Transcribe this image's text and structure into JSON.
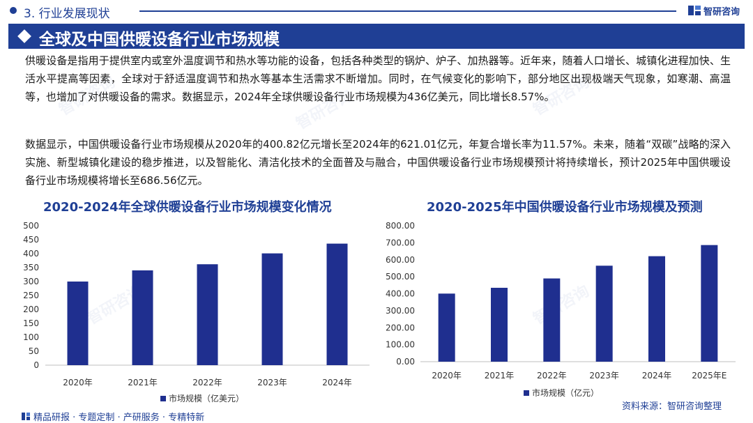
{
  "header": {
    "section": "3. 行业发展现状",
    "logo_text": "智研咨询"
  },
  "banner": {
    "title": "全球及中国供暖设备行业市场规模"
  },
  "paragraphs": [
    "供暖设备是指用于提供室内或室外温度调节和热水等功能的设备，包括各种类型的锅炉、炉子、加热器等。近年来，随着人口增长、城镇化进程加快、生活水平提高等因素，全球对于舒适温度调节和热水等基本生活需求不断增加。同时，在气候变化的影响下，部分地区出现极端天气现象，如寒潮、高温等，也增加了对供暖设备的需求。数据显示，2024年全球供暖设备行业市场规模为436亿美元，同比增长8.57%。",
    "数据显示，中国供暖设备行业市场规模从2020年的400.82亿元增长至2024年的621.01亿元，年复合增长率为11.57%。未来，随着“双碳”战略的深入实施、新型城镇化建设的稳步推进，以及智能化、清洁化技术的全面普及与融合，中国供暖设备行业市场规模预计将持续增长，预计2025年中国供暖设备行业市场规模将增长至686.56亿元。"
  ],
  "chart_data": [
    {
      "type": "bar",
      "title": "2020-2024年全球供暖设备行业市场规模变化情况",
      "categories": [
        "2020年",
        "2021年",
        "2022年",
        "2023年",
        "2024年"
      ],
      "series": [
        {
          "name": "市场规模（亿美元）",
          "values": [
            300,
            340,
            362,
            401,
            436
          ]
        }
      ],
      "ylim": [
        0,
        500
      ],
      "yticks": [
        "0",
        "50",
        "100",
        "150",
        "200",
        "250",
        "300",
        "350",
        "400",
        "450",
        "500"
      ],
      "legend": "bottom",
      "grid": false,
      "color": "#1f2f8f"
    },
    {
      "type": "bar",
      "title": "2020-2025年中国供暖设备行业市场规模及预测",
      "categories": [
        "2020年",
        "2021年",
        "2022年",
        "2023年",
        "2024年",
        "2025年E"
      ],
      "series": [
        {
          "name": "市场规模（亿元）",
          "values": [
            400.82,
            435,
            490,
            565,
            621.01,
            686.56
          ]
        }
      ],
      "ylim": [
        0,
        800
      ],
      "yticks": [
        "0.00",
        "100.00",
        "200.00",
        "300.00",
        "400.00",
        "500.00",
        "600.00",
        "700.00",
        "800.00"
      ],
      "legend": "bottom",
      "grid": false,
      "color": "#1f2f8f"
    }
  ],
  "footer": {
    "left": "精品研报 · 专题定制 · 产研服务 · 专精特新",
    "source": "资料来源：智研咨询整理"
  },
  "colors": {
    "primary": "#1f3f95",
    "bar": "#1f2f8f"
  }
}
